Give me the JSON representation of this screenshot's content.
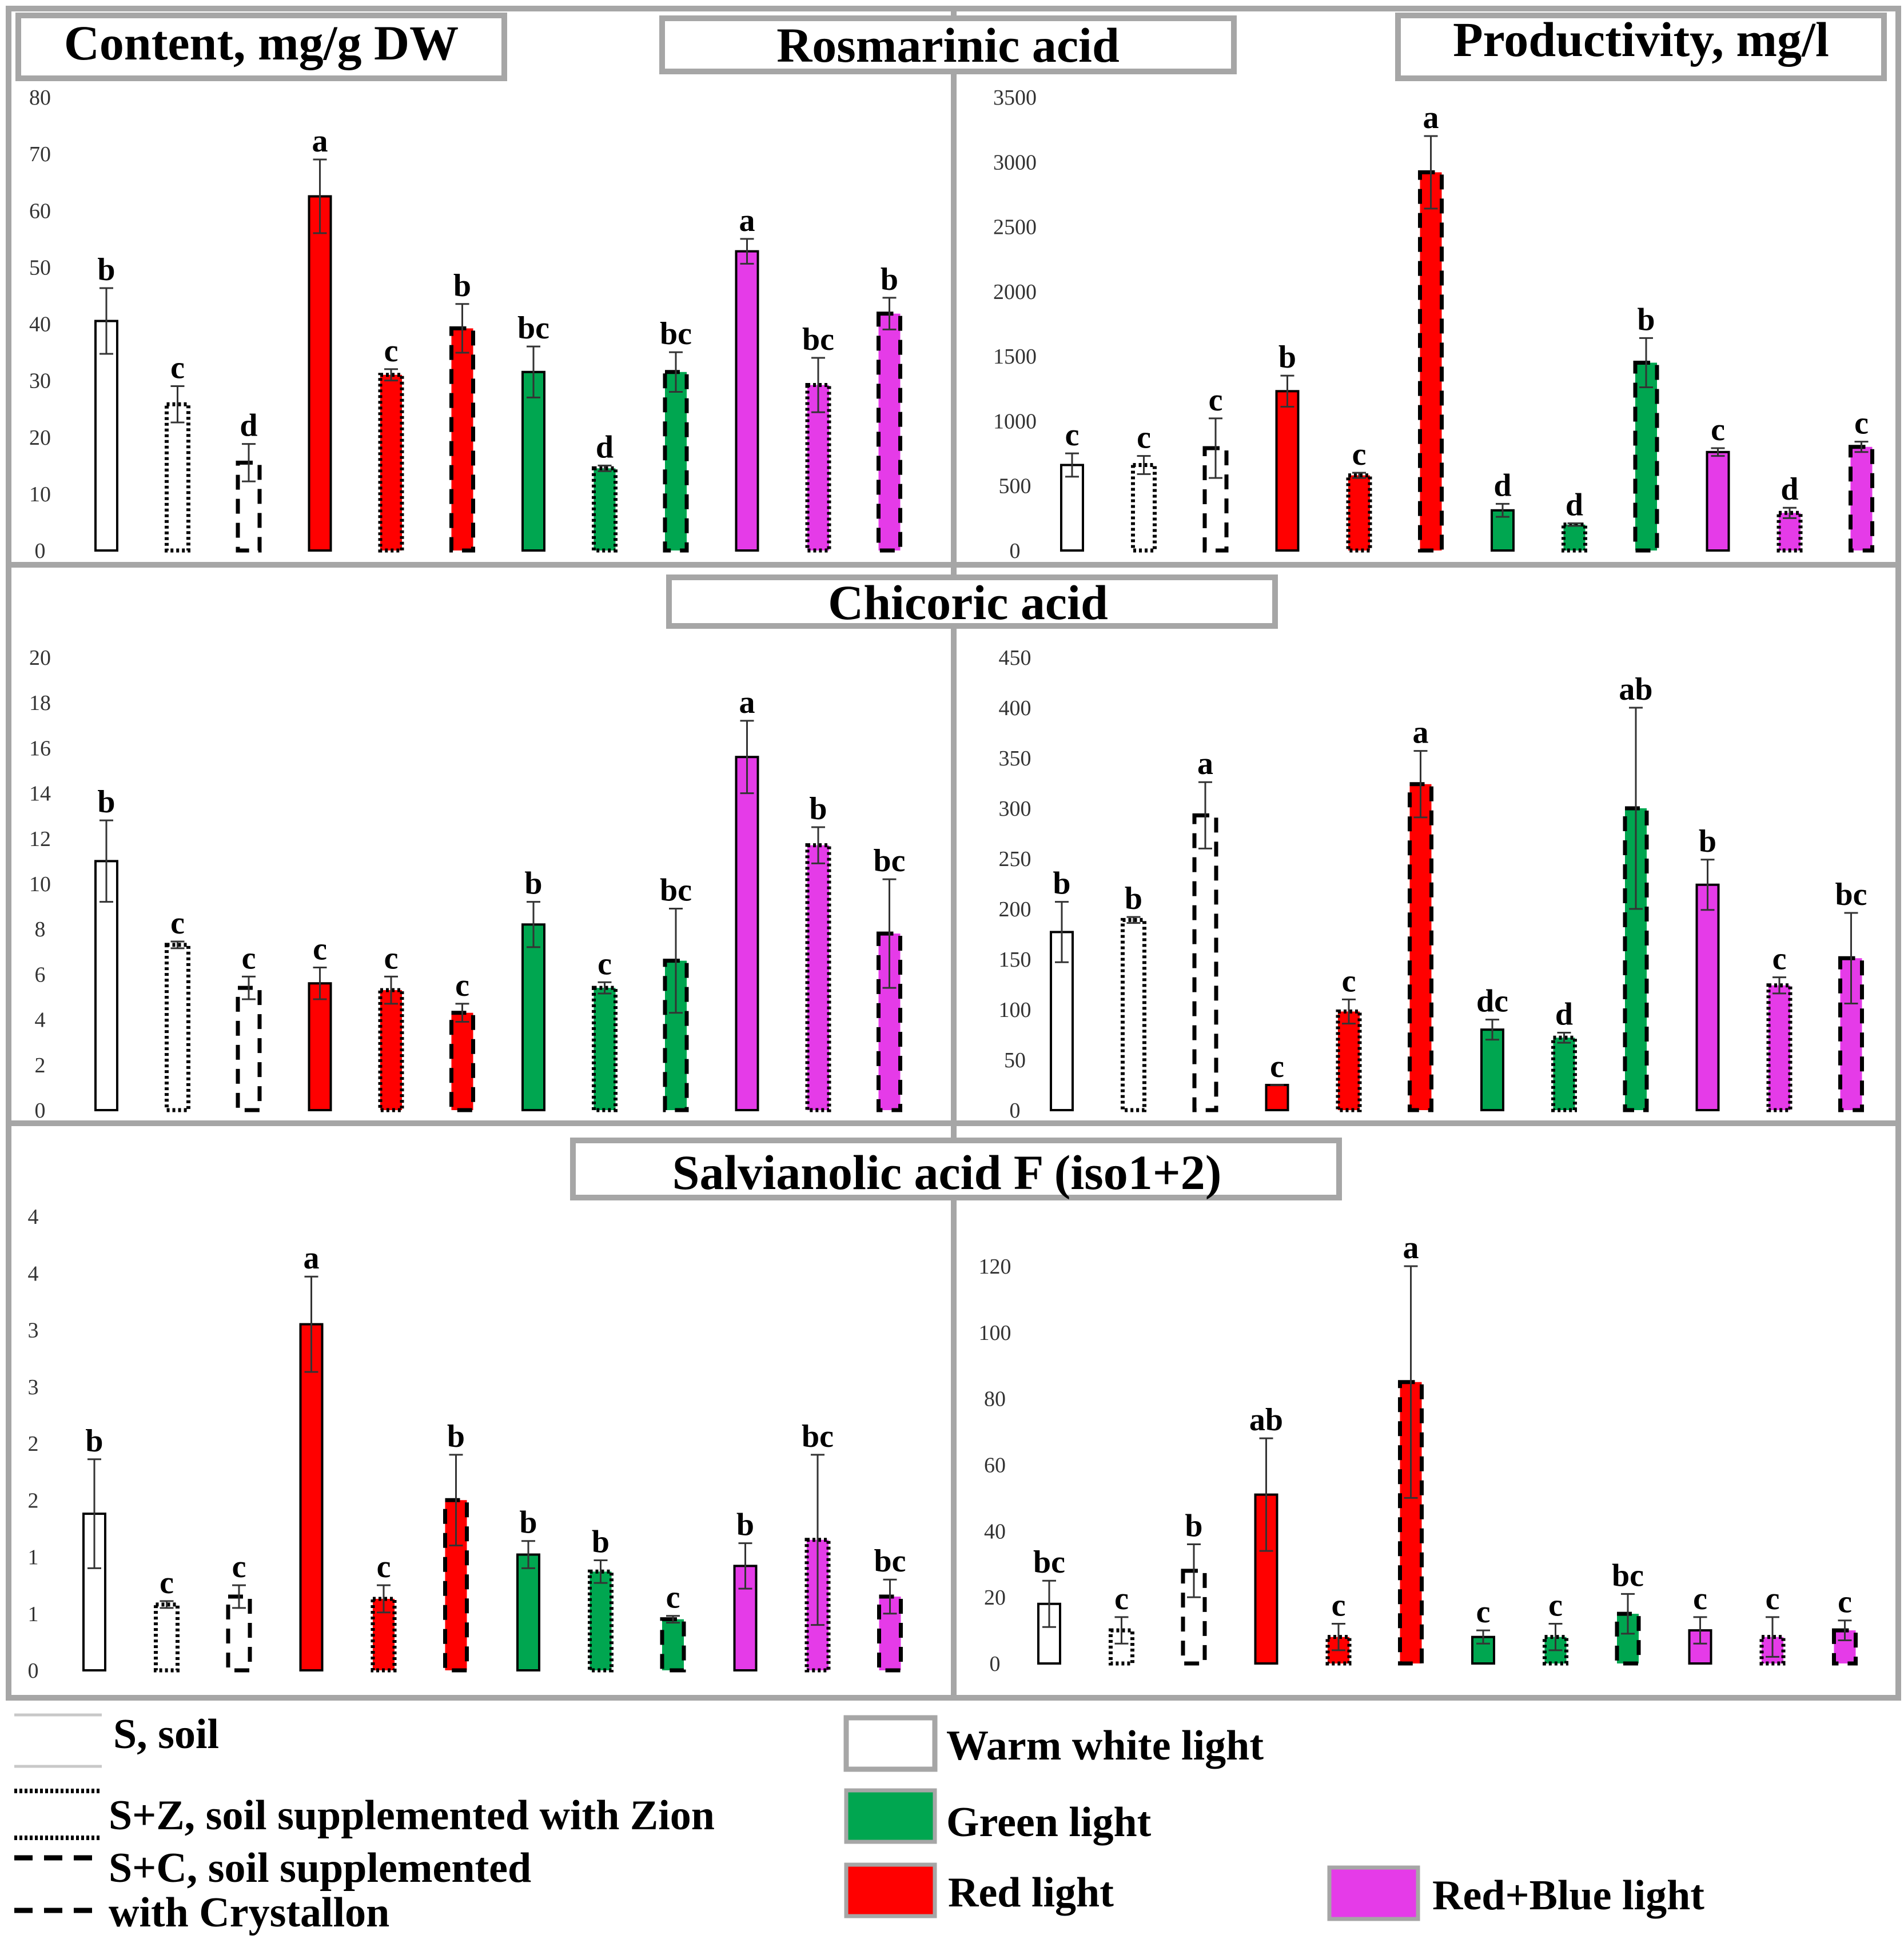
{
  "headers": {
    "content": "Content, mg/g DW",
    "productivity": "Productivity, mg/l"
  },
  "chart_data": [
    {
      "type": "bar",
      "compound": "Rosmarinic acid",
      "measure": "content",
      "ylim": [
        0,
        80
      ],
      "ticks": [
        "0",
        "10",
        "20",
        "30",
        "40",
        "50",
        "60",
        "70",
        "80"
      ],
      "values": [
        40.5,
        25.8,
        15.5,
        62.5,
        31.0,
        39.2,
        31.5,
        14.5,
        31.5,
        52.8,
        29.2,
        41.8
      ],
      "errors": [
        5.8,
        3.2,
        3.3,
        6.5,
        1.0,
        4.3,
        4.5,
        0.5,
        3.5,
        2.2,
        4.8,
        2.8
      ],
      "letters": [
        "b",
        "c",
        "d",
        "a",
        "c",
        "b",
        "bc",
        "d",
        "bc",
        "a",
        "bc",
        "b"
      ]
    },
    {
      "type": "bar",
      "compound": "Rosmarinic acid",
      "measure": "productivity",
      "ylim": [
        0,
        3500
      ],
      "ticks": [
        "0",
        "500",
        "1000",
        "1500",
        "2000",
        "2500",
        "3000",
        "3500"
      ],
      "values": [
        660,
        660,
        790,
        1230,
        580,
        2920,
        310,
        200,
        1450,
        760,
        290,
        800
      ],
      "errors": [
        90,
        70,
        230,
        120,
        20,
        280,
        50,
        10,
        190,
        30,
        40,
        40
      ],
      "letters": [
        "c",
        "c",
        "c",
        "b",
        "c",
        "a",
        "d",
        "d",
        "b",
        "c",
        "d",
        "c"
      ]
    },
    {
      "type": "bar",
      "compound": "Chicoric acid",
      "measure": "content",
      "ylim": [
        0,
        20
      ],
      "ticks": [
        "0",
        "2",
        "4",
        "6",
        "8",
        "10",
        "12",
        "14",
        "16",
        "18",
        "20"
      ],
      "values": [
        11.0,
        7.3,
        5.4,
        5.6,
        5.3,
        4.3,
        8.2,
        5.4,
        6.6,
        15.6,
        11.7,
        7.8
      ],
      "errors": [
        1.8,
        0.15,
        0.5,
        0.7,
        0.6,
        0.4,
        1.0,
        0.25,
        2.3,
        1.6,
        0.8,
        2.4
      ],
      "letters": [
        "b",
        "c",
        "c",
        "c",
        "c",
        "c",
        "b",
        "c",
        "bc",
        "a",
        "b",
        "bc"
      ]
    },
    {
      "type": "bar",
      "compound": "Chicoric acid",
      "measure": "productivity",
      "ylim": [
        0,
        450
      ],
      "ticks": [
        "0",
        "50",
        "100",
        "150",
        "200",
        "250",
        "300",
        "350",
        "400",
        "450"
      ],
      "values": [
        177,
        189,
        293,
        25,
        98,
        324,
        80,
        72,
        300,
        224,
        124,
        151
      ],
      "errors": [
        30,
        3,
        33,
        0,
        12,
        33,
        10,
        5,
        100,
        25,
        8,
        45
      ],
      "letters": [
        "b",
        "b",
        "a",
        "c",
        "c",
        "a",
        "dc",
        "d",
        "ab",
        "b",
        "c",
        "bc"
      ]
    },
    {
      "type": "bar",
      "compound": "Salvianolic acid F (iso1+2)",
      "measure": "content",
      "ylim": [
        0,
        4
      ],
      "ticks": [
        "0",
        "1",
        "1",
        "2",
        "2",
        "3",
        "3",
        "4",
        "4"
      ],
      "values": [
        1.38,
        0.58,
        0.65,
        3.05,
        0.63,
        1.5,
        1.02,
        0.87,
        0.45,
        0.92,
        1.15,
        0.65
      ],
      "errors": [
        0.48,
        0.03,
        0.1,
        0.42,
        0.12,
        0.4,
        0.12,
        0.1,
        0.03,
        0.2,
        0.75,
        0.15
      ],
      "letters": [
        "b",
        "c",
        "c",
        "a",
        "c",
        "b",
        "b",
        "b",
        "c",
        "b",
        "bc",
        "bc"
      ]
    },
    {
      "type": "bar",
      "compound": "Salvianolic acid F (iso1+2)",
      "measure": "productivity",
      "ylim": [
        0,
        120
      ],
      "ticks": [
        "0",
        "20",
        "40",
        "60",
        "80",
        "100",
        "120"
      ],
      "values": [
        18,
        10,
        28,
        51,
        8,
        85,
        8,
        8,
        15,
        10,
        8,
        10
      ],
      "errors": [
        7,
        4,
        8,
        17,
        4,
        35,
        2,
        4,
        6,
        4,
        6,
        3
      ],
      "letters": [
        "bc",
        "c",
        "b",
        "ab",
        "c",
        "a",
        "c",
        "c",
        "bc",
        "c",
        "c",
        "c"
      ]
    }
  ],
  "bar_styles": [
    {
      "light": "warm",
      "substrate": "S"
    },
    {
      "light": "warm",
      "substrate": "S+Z"
    },
    {
      "light": "warm",
      "substrate": "S+C"
    },
    {
      "light": "red",
      "substrate": "S"
    },
    {
      "light": "red",
      "substrate": "S+Z"
    },
    {
      "light": "red",
      "substrate": "S+C"
    },
    {
      "light": "green",
      "substrate": "S"
    },
    {
      "light": "green",
      "substrate": "S+Z"
    },
    {
      "light": "green",
      "substrate": "S+C"
    },
    {
      "light": "redblue",
      "substrate": "S"
    },
    {
      "light": "redblue",
      "substrate": "S+Z"
    },
    {
      "light": "redblue",
      "substrate": "S+C"
    }
  ],
  "colors": {
    "warm": "#ffffff",
    "red": "#ff0000",
    "green": "#00a650",
    "redblue": "#e53be8",
    "frame": "#a6a6a6",
    "text": "#000000"
  },
  "legend": {
    "soil_s": "S, soil",
    "soil_sz": "S+Z, soil supplemented with Zion",
    "soil_sc_line1": "S+C, soil supplemented",
    "soil_sc_line2": "with Crystallon",
    "warm": "Warm white light",
    "green": "Green light",
    "red": "Red light",
    "redblue": "Red+Blue light"
  }
}
